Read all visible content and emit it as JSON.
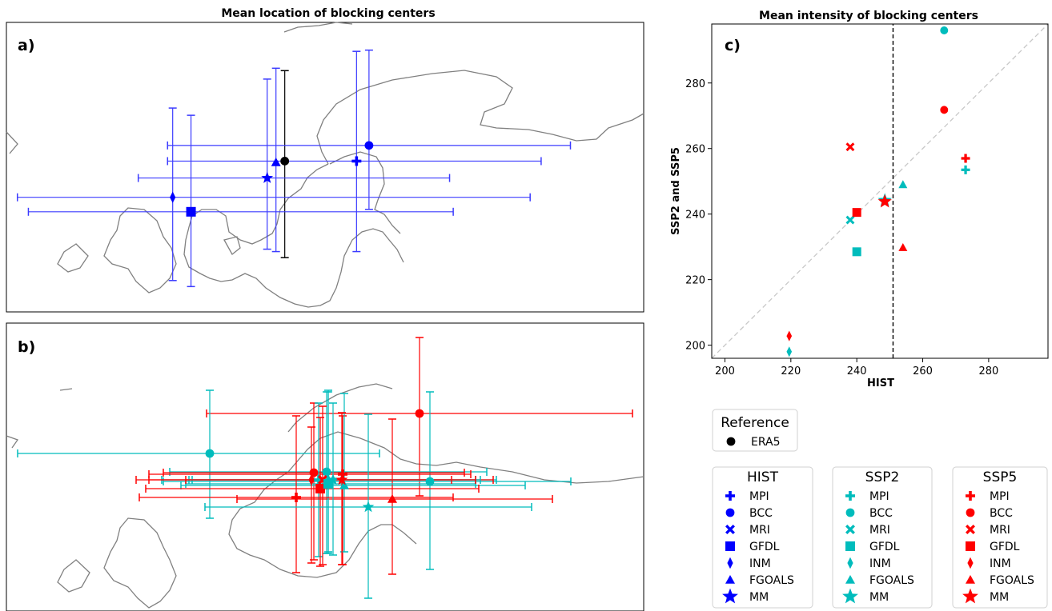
{
  "chart_data": [
    {
      "type": "scatter",
      "title": "Mean location of blocking centers",
      "panel_label": "a)",
      "description_type": "map with error bars",
      "series": [
        {
          "group": "Reference",
          "name": "ERA5",
          "marker": "circle",
          "color": "#000000",
          "lon": 16.0,
          "lat": 61.5,
          "lon_err": [
            0,
            0
          ],
          "lat_err": [
            53.5,
            69.0
          ]
        },
        {
          "group": "HIST",
          "name": "BCC",
          "marker": "circle",
          "color": "#0000ff",
          "lon": 27.5,
          "lat": 62.8,
          "lon_err": [
            0,
            55
          ],
          "lat_err": [
            57.5,
            70.7
          ]
        },
        {
          "group": "HIST",
          "name": "MPI",
          "marker": "plus",
          "color": "#0000ff",
          "lon": 25.8,
          "lat": 61.5,
          "lon_err": [
            0,
            51
          ],
          "lat_err": [
            54,
            70.6
          ]
        },
        {
          "group": "HIST",
          "name": "FGOALS",
          "marker": "triangle",
          "color": "#0000ff",
          "lon": 14.8,
          "lat": 61.4,
          "lon_err": [
            0,
            0
          ],
          "lat_err": [
            54,
            69.2
          ]
        },
        {
          "group": "HIST",
          "name": "MM",
          "marker": "star",
          "color": "#0000ff",
          "lon": 13.6,
          "lat": 60.1,
          "lon_err": [
            -4,
            38.5
          ],
          "lat_err": [
            54.2,
            68.3
          ]
        },
        {
          "group": "HIST",
          "name": "INM",
          "marker": "diamond",
          "color": "#0000ff",
          "lon": 0.7,
          "lat": 58.5,
          "lon_err": [
            -20.5,
            49.5
          ],
          "lat_err": [
            51.6,
            65.9
          ]
        },
        {
          "group": "HIST",
          "name": "GFDL",
          "marker": "square",
          "color": "#0000ff",
          "lon": 3.2,
          "lat": 57.3,
          "lon_err": [
            -19,
            39
          ],
          "lat_err": [
            51.1,
            65.3
          ]
        }
      ]
    },
    {
      "type": "scatter",
      "title": "",
      "panel_label": "b)",
      "series_groups": [
        "SSP2",
        "SSP5"
      ],
      "colors": {
        "SSP2": "#00bcbc",
        "SSP5": "#ff0000"
      }
    },
    {
      "type": "scatter",
      "title": "Mean intensity of blocking centers",
      "panel_label": "c)",
      "xlabel": "HIST",
      "ylabel": "SSP2 and SSP5",
      "xlim": [
        196,
        298
      ],
      "ylim": [
        196,
        298
      ],
      "xticks": [
        200,
        220,
        240,
        260,
        280
      ],
      "yticks": [
        200,
        220,
        240,
        260,
        280
      ],
      "reference_x": 251,
      "series": [
        {
          "name": "SSP2",
          "color": "#00bcbc",
          "points": [
            {
              "model": "MPI",
              "marker": "plus",
              "x": 273,
              "y": 253.5
            },
            {
              "model": "BCC",
              "marker": "circle",
              "x": 266.5,
              "y": 298
            },
            {
              "model": "MRI",
              "marker": "x",
              "x": 238,
              "y": 238.2
            },
            {
              "model": "GFDL",
              "marker": "square",
              "x": 240,
              "y": 228.5
            },
            {
              "model": "INM",
              "marker": "diamond",
              "x": 219.5,
              "y": 198
            },
            {
              "model": "FGOALS",
              "marker": "triangle",
              "x": 254,
              "y": 249
            },
            {
              "model": "MM",
              "marker": "star",
              "x": 248.5,
              "y": 244.2
            }
          ]
        },
        {
          "name": "SSP5",
          "color": "#ff0000",
          "points": [
            {
              "model": "MPI",
              "marker": "plus",
              "x": 273,
              "y": 257
            },
            {
              "model": "BCC",
              "marker": "circle",
              "x": 266.5,
              "y": 271.8
            },
            {
              "model": "MRI",
              "marker": "x",
              "x": 238,
              "y": 260.5
            },
            {
              "model": "GFDL",
              "marker": "square",
              "x": 240,
              "y": 240.5
            },
            {
              "model": "INM",
              "marker": "diamond",
              "x": 219.5,
              "y": 202.8
            },
            {
              "model": "FGOALS",
              "marker": "triangle",
              "x": 254,
              "y": 229.8
            },
            {
              "model": "MM",
              "marker": "star",
              "x": 248.5,
              "y": 243.8
            }
          ]
        }
      ]
    }
  ],
  "legend": {
    "reference": {
      "title": "Reference",
      "entries": [
        {
          "label": "ERA5",
          "marker": "circle",
          "color": "#000000"
        }
      ]
    },
    "groups": [
      {
        "title": "HIST",
        "color": "#0000ff",
        "entries": [
          "MPI",
          "BCC",
          "MRI",
          "GFDL",
          "INM",
          "FGOALS",
          "MM"
        ]
      },
      {
        "title": "SSP2",
        "color": "#00bcbc",
        "entries": [
          "MPI",
          "BCC",
          "MRI",
          "GFDL",
          "INM",
          "FGOALS",
          "MM"
        ]
      },
      {
        "title": "SSP5",
        "color": "#ff0000",
        "entries": [
          "MPI",
          "BCC",
          "MRI",
          "GFDL",
          "INM",
          "FGOALS",
          "MM"
        ]
      }
    ],
    "markers": [
      "plus",
      "circle",
      "x",
      "square",
      "diamond",
      "triangle",
      "star"
    ]
  }
}
